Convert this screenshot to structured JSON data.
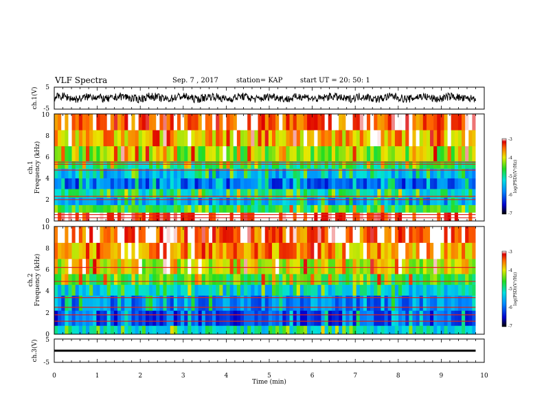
{
  "header": {
    "title": "VLF Spectra",
    "date": "Sep. 7 , 2017",
    "station": "station= KAP",
    "start": "start UT = 20: 50: 1"
  },
  "chart_data": [
    {
      "type": "line",
      "name": "ch1-waveform",
      "ylabel": "ch.1(V)",
      "ylim": [
        -5,
        5
      ],
      "yticks": [
        "5",
        "-5"
      ],
      "x_range_min": [
        0,
        9.8
      ],
      "baseline_v": 0.2,
      "amplitude_v": 1.8
    },
    {
      "type": "heatmap",
      "name": "ch1-spectrogram",
      "ylabel": "Frequency (kHz)",
      "channel_label": "ch.1",
      "ylim": [
        0,
        10
      ],
      "yticks": [
        "0",
        "2",
        "4",
        "6",
        "8",
        "10"
      ],
      "colorbar": {
        "label": "log(PSD)(V²/Hz)",
        "range": [
          -7,
          -3
        ],
        "ticks": [
          "-3",
          "-4",
          "-5",
          "-6",
          "-7"
        ]
      },
      "bands_khz": [
        {
          "from": 0,
          "to": 0.8,
          "log_psd": -3.1
        },
        {
          "from": 0.8,
          "to": 1.5,
          "log_psd": -4.7
        },
        {
          "from": 1.5,
          "to": 2.2,
          "log_psd": -5.6
        },
        {
          "from": 2.2,
          "to": 3.0,
          "log_psd": -5.1
        },
        {
          "from": 3.0,
          "to": 4.0,
          "log_psd": -6.0
        },
        {
          "from": 4.0,
          "to": 4.9,
          "log_psd": -5.5
        },
        {
          "from": 4.9,
          "to": 5.6,
          "log_psd": -4.9
        },
        {
          "from": 5.6,
          "to": 7.0,
          "log_psd": -4.3
        },
        {
          "from": 7.0,
          "to": 8.5,
          "log_psd": -3.8
        },
        {
          "from": 8.5,
          "to": 10.0,
          "log_psd": -3.4
        }
      ],
      "lines_khz": [
        0.3,
        0.6,
        2.0,
        2.3,
        4.75,
        5.3,
        5.5
      ]
    },
    {
      "type": "heatmap",
      "name": "ch2-spectrogram",
      "ylabel": "Frequency (kHz)",
      "channel_label": "ch.2",
      "ylim": [
        0,
        10
      ],
      "yticks": [
        "0",
        "2",
        "4",
        "6",
        "8",
        "10"
      ],
      "colorbar": {
        "label": "log(PSD)(V²/Hz)",
        "range": [
          -7,
          -3
        ],
        "ticks": [
          "-3",
          "-4",
          "-5",
          "-6",
          "-7"
        ]
      },
      "bands_khz": [
        {
          "from": 0,
          "to": 0.8,
          "log_psd": -5.2
        },
        {
          "from": 0.8,
          "to": 2.2,
          "log_psd": -6.1
        },
        {
          "from": 2.2,
          "to": 3.6,
          "log_psd": -5.8
        },
        {
          "from": 3.6,
          "to": 4.6,
          "log_psd": -5.3
        },
        {
          "from": 4.6,
          "to": 5.6,
          "log_psd": -4.6
        },
        {
          "from": 5.6,
          "to": 7.0,
          "log_psd": -4.1
        },
        {
          "from": 7.0,
          "to": 8.5,
          "log_psd": -3.7
        },
        {
          "from": 8.5,
          "to": 10.0,
          "log_psd": -3.4
        }
      ],
      "lines_khz": [
        1.2,
        1.8,
        2.5,
        3.4,
        4.9,
        6.2
      ]
    },
    {
      "type": "line",
      "name": "ch3-waveform",
      "ylabel": "ch.3(V)",
      "ylim": [
        -5,
        5
      ],
      "yticks": [
        "5",
        "0",
        "-5"
      ],
      "x_range_min": [
        0,
        9.8
      ],
      "constant_v": 0
    }
  ],
  "xaxis": {
    "label": "Time (min)",
    "range": [
      0,
      10
    ],
    "ticks": [
      "0",
      "1",
      "2",
      "3",
      "4",
      "5",
      "6",
      "7",
      "8",
      "9",
      "10"
    ]
  },
  "colors": {
    "line": "#000000",
    "background": "#ffffff"
  }
}
